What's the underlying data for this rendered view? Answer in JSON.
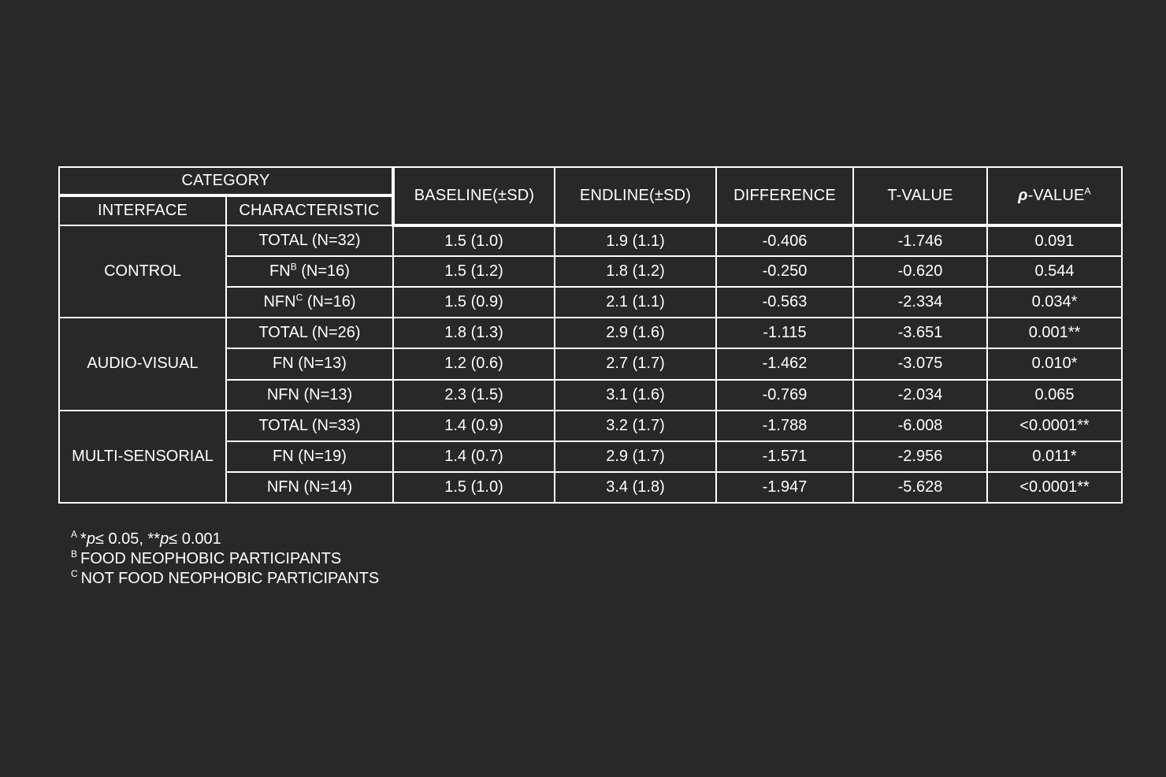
{
  "header": {
    "category": "CATEGORY",
    "interface": "INTERFACE",
    "characteristic": "CHARACTERISTIC",
    "baseline": "BASELINE(±SD)",
    "endline": "ENDLINE(±SD)",
    "difference": "DIFFERENCE",
    "tvalue": "T-VALUE",
    "pvalue_symbol": "ρ",
    "pvalue_rest": "-VALUE",
    "pvalue_sup": "A"
  },
  "groups": [
    {
      "interface": "CONTROL",
      "rows": [
        {
          "char": "TOTAL (N=32)",
          "char_sup": "",
          "char_suffix": "",
          "baseline": "1.5 (1.0)",
          "endline": "1.9 (1.1)",
          "difference": "-0.406",
          "tvalue": "-1.746",
          "pvalue": "0.091"
        },
        {
          "char": "FN",
          "char_sup": "B",
          "char_suffix": " (N=16)",
          "baseline": "1.5 (1.2)",
          "endline": "1.8 (1.2)",
          "difference": "-0.250",
          "tvalue": "-0.620",
          "pvalue": "0.544"
        },
        {
          "char": "NFN",
          "char_sup": "C",
          "char_suffix": " (N=16)",
          "baseline": "1.5 (0.9)",
          "endline": "2.1 (1.1)",
          "difference": "-0.563",
          "tvalue": "-2.334",
          "pvalue": "0.034*"
        }
      ]
    },
    {
      "interface": "AUDIO-VISUAL",
      "rows": [
        {
          "char": "TOTAL (N=26)",
          "char_sup": "",
          "char_suffix": "",
          "baseline": "1.8 (1.3)",
          "endline": "2.9 (1.6)",
          "difference": "-1.115",
          "tvalue": "-3.651",
          "pvalue": "0.001**"
        },
        {
          "char": "FN (N=13)",
          "char_sup": "",
          "char_suffix": "",
          "baseline": "1.2 (0.6)",
          "endline": "2.7 (1.7)",
          "difference": "-1.462",
          "tvalue": "-3.075",
          "pvalue": "0.010*"
        },
        {
          "char": "NFN (N=13)",
          "char_sup": "",
          "char_suffix": "",
          "baseline": "2.3 (1.5)",
          "endline": "3.1 (1.6)",
          "difference": "-0.769",
          "tvalue": "-2.034",
          "pvalue": "0.065"
        }
      ]
    },
    {
      "interface": "MULTI-SENSORIAL",
      "rows": [
        {
          "char": "TOTAL (N=33)",
          "char_sup": "",
          "char_suffix": "",
          "baseline": "1.4 (0.9)",
          "endline": "3.2 (1.7)",
          "difference": "-1.788",
          "tvalue": "-6.008",
          "pvalue": "<0.0001**"
        },
        {
          "char": "FN (N=19)",
          "char_sup": "",
          "char_suffix": "",
          "baseline": "1.4 (0.7)",
          "endline": "2.9 (1.7)",
          "difference": "-1.571",
          "tvalue": "-2.956",
          "pvalue": "0.011*"
        },
        {
          "char": "NFN (N=14)",
          "char_sup": "",
          "char_suffix": "",
          "baseline": "1.5 (1.0)",
          "endline": "3.4 (1.8)",
          "difference": "-1.947",
          "tvalue": "-5.628",
          "pvalue": "<0.0001**"
        }
      ]
    }
  ],
  "footnotes": {
    "a_mark": "A",
    "a_pre1": "*",
    "a_p1": "p",
    "a_mid": "≤ 0.05, **",
    "a_p2": "p",
    "a_post": "≤ 0.001",
    "b_mark": "B",
    "b_text": "FOOD NEOPHOBIC PARTICIPANTS",
    "c_mark": "C",
    "c_text": "NOT FOOD NEOPHOBIC PARTICIPANTS"
  },
  "colors": {
    "background": "#282828",
    "text": "#ffffff",
    "border": "#ffffff"
  }
}
